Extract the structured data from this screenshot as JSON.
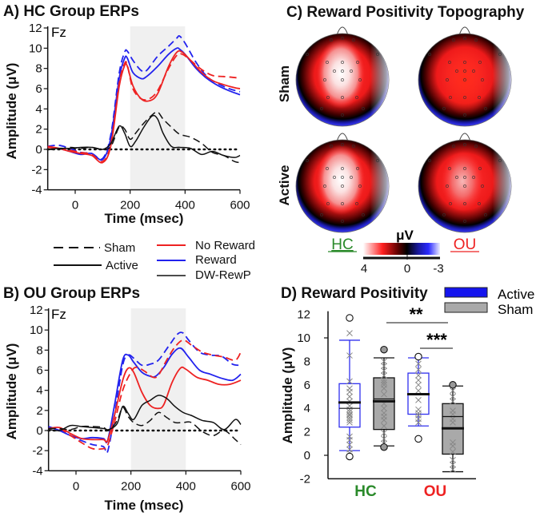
{
  "chart_data": [
    {
      "id": "A",
      "type": "line",
      "title": "A) HC Group ERPs",
      "channel": "Fz",
      "xlabel": "Time (msec)",
      "ylabel": "Amplitude (μV)",
      "xlim": [
        -100,
        600
      ],
      "ylim": [
        -4,
        12
      ],
      "xticks": [
        0,
        200,
        400,
        600
      ],
      "yticks": [
        12,
        10,
        8,
        6,
        4,
        2,
        0,
        -2,
        -4
      ],
      "shaded_window": [
        200,
        400
      ],
      "series": [
        {
          "name": "Reward Sham",
          "color": "#2222ee",
          "dash": true,
          "x": [
            -100,
            -60,
            -20,
            20,
            60,
            100,
            130,
            160,
            180,
            190,
            210,
            240,
            260,
            300,
            340,
            370,
            380,
            400,
            440,
            480,
            520,
            560,
            600
          ],
          "y": [
            0.3,
            0.4,
            0.1,
            -0.3,
            -0.4,
            -0.9,
            1.5,
            7.5,
            9.6,
            9.7,
            8.8,
            7.8,
            7.8,
            9.2,
            10.2,
            11.0,
            11.2,
            10.5,
            8.6,
            7.2,
            6.5,
            6.0,
            5.7
          ]
        },
        {
          "name": "Reward Active",
          "color": "#2222ee",
          "dash": false,
          "x": [
            -100,
            -60,
            -20,
            20,
            60,
            100,
            130,
            160,
            180,
            190,
            210,
            240,
            260,
            300,
            340,
            370,
            380,
            400,
            440,
            480,
            520,
            560,
            600
          ],
          "y": [
            0.2,
            0.1,
            -0.2,
            -0.5,
            -0.4,
            -1.0,
            1.2,
            7.0,
            9.0,
            9.0,
            7.6,
            7.0,
            7.2,
            8.2,
            9.4,
            10.0,
            9.9,
            9.4,
            8.0,
            7.0,
            6.3,
            5.8,
            5.4
          ]
        },
        {
          "name": "No Reward Sham",
          "color": "#ee2222",
          "dash": true,
          "x": [
            -100,
            -60,
            -20,
            20,
            60,
            100,
            130,
            160,
            180,
            190,
            210,
            240,
            270,
            300,
            340,
            370,
            390,
            420,
            460,
            500,
            540,
            580,
            600
          ],
          "y": [
            0.2,
            0.1,
            -0.1,
            -0.3,
            -0.5,
            -1.2,
            0.6,
            6.5,
            8.5,
            8.3,
            6.0,
            5.0,
            5.0,
            5.8,
            8.0,
            9.3,
            9.4,
            8.8,
            7.9,
            7.3,
            7.2,
            7.1,
            7.0
          ]
        },
        {
          "name": "No Reward Active",
          "color": "#ee2222",
          "dash": false,
          "x": [
            -100,
            -60,
            -20,
            20,
            60,
            100,
            130,
            160,
            180,
            190,
            210,
            240,
            270,
            300,
            340,
            370,
            390,
            420,
            460,
            500,
            540,
            580,
            600
          ],
          "y": [
            0.3,
            0.1,
            -0.2,
            -0.4,
            -0.6,
            -1.3,
            0.4,
            6.2,
            8.3,
            8.2,
            6.3,
            5.0,
            4.8,
            5.5,
            8.2,
            9.6,
            9.6,
            8.8,
            7.6,
            6.8,
            6.4,
            6.1,
            6.0
          ]
        },
        {
          "name": "DW-RewP Sham",
          "color": "#111111",
          "dash": true,
          "x": [
            -100,
            -60,
            -20,
            20,
            60,
            100,
            130,
            160,
            180,
            200,
            220,
            250,
            280,
            300,
            320,
            350,
            380,
            420,
            460,
            500,
            540,
            580,
            600
          ],
          "y": [
            0.0,
            0.0,
            0.2,
            0.1,
            0.2,
            0.0,
            0.3,
            2.2,
            2.0,
            1.0,
            1.6,
            2.6,
            3.4,
            3.7,
            3.0,
            2.2,
            1.5,
            1.2,
            0.6,
            -0.3,
            -0.6,
            -1.2,
            -1.3
          ]
        },
        {
          "name": "DW-RewP Active",
          "color": "#111111",
          "dash": false,
          "x": [
            -100,
            -60,
            -20,
            20,
            60,
            100,
            130,
            160,
            180,
            200,
            220,
            250,
            280,
            300,
            320,
            350,
            380,
            420,
            460,
            500,
            540,
            580,
            600
          ],
          "y": [
            0.0,
            0.1,
            0.1,
            0.2,
            0.2,
            0.0,
            0.6,
            2.3,
            1.6,
            0.3,
            0.8,
            2.2,
            3.3,
            3.0,
            1.6,
            0.3,
            0.2,
            0.1,
            -0.5,
            -0.2,
            -0.6,
            -0.8,
            -0.6
          ]
        }
      ]
    },
    {
      "id": "B",
      "type": "line",
      "title": "B) OU Group ERPs",
      "channel": "Fz",
      "xlabel": "Time (msec)",
      "ylabel": "Amplitude (μV)",
      "xlim": [
        -100,
        600
      ],
      "ylim": [
        -4,
        12
      ],
      "xticks": [
        0,
        200,
        400,
        600
      ],
      "yticks": [
        12,
        10,
        8,
        6,
        4,
        2,
        0,
        -2,
        -4
      ],
      "shaded_window": [
        200,
        400
      ],
      "series": [
        {
          "name": "Reward Sham",
          "color": "#2222ee",
          "dash": true,
          "x": [
            -100,
            -60,
            -20,
            20,
            60,
            100,
            115,
            140,
            170,
            190,
            210,
            240,
            270,
            300,
            340,
            370,
            390,
            410,
            450,
            490,
            530,
            570,
            600
          ],
          "y": [
            0.3,
            0.1,
            -0.5,
            -1.0,
            -1.4,
            -1.6,
            -2.1,
            1.5,
            6.5,
            7.5,
            7.2,
            6.5,
            6.6,
            7.0,
            8.5,
            9.6,
            9.7,
            9.0,
            7.8,
            7.5,
            7.4,
            6.6,
            6.5
          ]
        },
        {
          "name": "Reward Active",
          "color": "#2222ee",
          "dash": false,
          "x": [
            -100,
            -60,
            -20,
            20,
            60,
            100,
            115,
            140,
            170,
            190,
            210,
            240,
            270,
            290,
            320,
            350,
            380,
            410,
            450,
            490,
            530,
            570,
            600
          ],
          "y": [
            0.4,
            0.0,
            -0.5,
            -0.8,
            -0.7,
            -0.8,
            -1.0,
            2.5,
            7.0,
            7.5,
            6.8,
            5.8,
            5.4,
            5.4,
            6.3,
            7.6,
            8.2,
            7.3,
            6.0,
            5.6,
            5.2,
            5.0,
            5.6
          ]
        },
        {
          "name": "No Reward Sham",
          "color": "#ee2222",
          "dash": true,
          "x": [
            -100,
            -60,
            -20,
            20,
            60,
            100,
            115,
            140,
            170,
            200,
            220,
            250,
            280,
            300,
            330,
            360,
            390,
            420,
            460,
            500,
            540,
            580,
            600
          ],
          "y": [
            0.2,
            0.2,
            -0.5,
            -1.2,
            -1.8,
            -1.8,
            -1.5,
            0.8,
            4.0,
            5.8,
            6.3,
            5.9,
            5.3,
            5.5,
            7.0,
            8.3,
            9.0,
            8.5,
            7.8,
            7.5,
            7.3,
            7.0,
            7.8
          ]
        },
        {
          "name": "No Reward Active",
          "color": "#ee2222",
          "dash": false,
          "x": [
            -100,
            -60,
            -20,
            20,
            60,
            100,
            115,
            140,
            170,
            190,
            210,
            240,
            270,
            300,
            320,
            350,
            380,
            400,
            440,
            480,
            520,
            560,
            600
          ],
          "y": [
            0.2,
            0.3,
            -0.3,
            -0.8,
            -0.9,
            -0.9,
            -1.0,
            1.5,
            5.0,
            6.2,
            5.8,
            3.8,
            2.5,
            2.2,
            2.6,
            4.8,
            6.2,
            6.1,
            5.3,
            5.0,
            4.6,
            4.6,
            5.0
          ]
        },
        {
          "name": "DW-RewP Sham",
          "color": "#111111",
          "dash": true,
          "x": [
            -100,
            -60,
            -20,
            20,
            60,
            100,
            120,
            150,
            170,
            190,
            210,
            240,
            270,
            300,
            330,
            360,
            390,
            420,
            460,
            500,
            540,
            580,
            600
          ],
          "y": [
            0.2,
            0.2,
            0.1,
            0.4,
            0.4,
            0.3,
            0.0,
            1.0,
            2.3,
            1.4,
            0.8,
            0.5,
            1.0,
            1.8,
            1.3,
            0.8,
            0.8,
            0.8,
            -0.1,
            -0.5,
            0.0,
            -0.9,
            -1.4
          ]
        },
        {
          "name": "DW-RewP Active",
          "color": "#111111",
          "dash": false,
          "x": [
            -100,
            -60,
            -20,
            20,
            60,
            100,
            120,
            150,
            170,
            190,
            210,
            240,
            270,
            300,
            330,
            360,
            390,
            420,
            460,
            500,
            540,
            580,
            600
          ],
          "y": [
            0.1,
            0.0,
            0.5,
            0.4,
            0.3,
            0.2,
            0.1,
            0.7,
            2.4,
            1.7,
            1.1,
            2.5,
            3.0,
            3.5,
            3.2,
            2.4,
            1.8,
            1.5,
            1.0,
            0.8,
            0.1,
            1.1,
            0.6
          ]
        }
      ]
    },
    {
      "id": "C",
      "type": "heatmap",
      "title": "C) Reward Positivity Topography",
      "rows": [
        "Sham",
        "Active"
      ],
      "columns": [
        "HC",
        "OU"
      ],
      "column_label_colors": {
        "HC": "#2a8a2a",
        "OU": "#ee2222"
      },
      "colorbar": {
        "label": "μV",
        "ticks": [
          4,
          0,
          -3
        ],
        "range": [
          4,
          -3
        ]
      },
      "maps": [
        {
          "row": "Sham",
          "col": "HC",
          "peak": "frontocentral",
          "peak_intensity": "white"
        },
        {
          "row": "Sham",
          "col": "OU",
          "peak": "central",
          "peak_intensity": "red"
        },
        {
          "row": "Active",
          "col": "HC",
          "peak": "frontocentral",
          "peak_intensity": "white"
        },
        {
          "row": "Active",
          "col": "OU",
          "peak": "frontocentral",
          "peak_intensity": "light-red"
        }
      ]
    },
    {
      "id": "D",
      "type": "box",
      "title": "D) Reward Positivity",
      "ylabel": "Amplitude (μV)",
      "ylim": [
        -2,
        12
      ],
      "yticks": [
        12,
        10,
        8,
        6,
        4,
        2,
        0,
        -2
      ],
      "categories": [
        "HC",
        "OU"
      ],
      "category_colors": {
        "HC": "#2a8a2a",
        "OU": "#ee2222"
      },
      "legend": [
        {
          "label": "Active",
          "color": "#1414ee"
        },
        {
          "label": "Sham",
          "color": "#a9a9a9"
        }
      ],
      "boxes": [
        {
          "group": "HC",
          "condition": "Active",
          "whisker_low": 0.4,
          "q1": 2.4,
          "median": 4.0,
          "mean": 4.5,
          "q3": 6.1,
          "whisker_high": 9.8,
          "outliers": [
            -0.1,
            11.7
          ],
          "points": [
            0.2,
            0.5,
            0.9,
            1.3,
            1.6,
            2.8,
            3.0,
            3.2,
            3.4,
            3.5,
            3.7,
            3.9,
            4.2,
            4.6,
            5.0,
            5.4,
            5.7,
            6.3,
            8.5,
            10.4
          ]
        },
        {
          "group": "HC",
          "condition": "Sham",
          "whisker_low": 0.8,
          "q1": 2.2,
          "median": 4.8,
          "mean": 4.6,
          "q3": 6.6,
          "whisker_high": 8.3,
          "outliers": [
            0.7,
            9.0
          ],
          "points": [
            1.0,
            1.4,
            1.9,
            2.5,
            3.0,
            3.3,
            3.6,
            4.0,
            4.4,
            5.2,
            5.7,
            6.0,
            6.2,
            6.4,
            6.8,
            7.2,
            7.6,
            8.0
          ]
        },
        {
          "group": "OU",
          "condition": "Active",
          "whisker_low": 2.5,
          "q1": 3.5,
          "median": 5.2,
          "mean": 5.2,
          "q3": 7.0,
          "whisker_high": 8.3,
          "outliers": [
            1.4,
            8.4
          ],
          "points": [
            2.8,
            3.1,
            3.4,
            3.6,
            3.9,
            4.7,
            5.5,
            6.0,
            6.4,
            6.8,
            7.3,
            7.8
          ]
        },
        {
          "group": "OU",
          "condition": "Sham",
          "whisker_low": -1.4,
          "q1": 0.1,
          "median": 3.3,
          "mean": 2.3,
          "q3": 4.4,
          "whisker_high": 5.9,
          "outliers": [
            6.0
          ],
          "points": [
            -1.2,
            -0.8,
            -0.4,
            0.3,
            0.8,
            1.1,
            2.8,
            3.1,
            3.5,
            3.8,
            4.6,
            5.0,
            5.5
          ]
        }
      ],
      "significance": [
        {
          "label": "**",
          "between": [
            "HC Sham",
            "OU Sham"
          ]
        },
        {
          "label": "***",
          "between": [
            "OU Active",
            "OU Sham"
          ]
        }
      ]
    }
  ],
  "legend_ab": {
    "style": [
      {
        "label": "Sham",
        "dash": true
      },
      {
        "label": "Active",
        "dash": false
      }
    ],
    "color": [
      {
        "label": "No Reward",
        "color": "#ee2222"
      },
      {
        "label": "Reward",
        "color": "#2222ee"
      },
      {
        "label": "DW-RewP",
        "color": "#111111"
      }
    ]
  }
}
